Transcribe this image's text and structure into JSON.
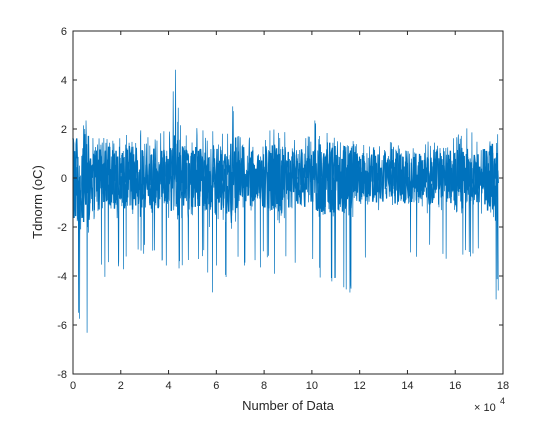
{
  "chart_data": {
    "type": "line",
    "title": "",
    "xlabel": "Number of Data",
    "ylabel": "Tdnorm (oC)",
    "x_exponent_label": {
      "base": "× 10",
      "exponent": "4"
    },
    "xlim": [
      0,
      180000
    ],
    "ylim": [
      -8,
      6
    ],
    "x_ticks": [
      0,
      20000,
      40000,
      60000,
      80000,
      100000,
      120000,
      140000,
      160000,
      180000
    ],
    "x_tick_labels": [
      "0",
      "2",
      "4",
      "6",
      "8",
      "10",
      "12",
      "14",
      "16",
      "18"
    ],
    "y_ticks": [
      -8,
      -6,
      -4,
      -2,
      0,
      2,
      4,
      6
    ],
    "y_tick_labels": [
      "-8",
      "-6",
      "-4",
      "-2",
      "0",
      "2",
      "4",
      "6"
    ],
    "grid": false,
    "line_color": "#0072BD",
    "n_points": 178000,
    "series": [
      {
        "envelope": {
          "x": [
            0,
            2000,
            4000,
            6000,
            8000,
            10000,
            15000,
            20000,
            25000,
            30000,
            35000,
            40000,
            43000,
            45000,
            50000,
            55000,
            57000,
            60000,
            65000,
            68000,
            70000,
            75000,
            80000,
            85000,
            90000,
            95000,
            100000,
            102000,
            105000,
            110000,
            115000,
            118000,
            120000,
            125000,
            130000,
            135000,
            140000,
            145000,
            150000,
            155000,
            160000,
            165000,
            170000,
            175000,
            178000
          ],
          "upper": [
            2.0,
            1.8,
            2.8,
            2.8,
            2.2,
            1.6,
            1.7,
            1.7,
            2.6,
            1.7,
            2.0,
            1.9,
            4.9,
            2.3,
            2.0,
            2.3,
            2.0,
            1.8,
            2.0,
            3.5,
            2.0,
            1.8,
            2.0,
            2.1,
            1.9,
            1.7,
            2.7,
            2.3,
            2.0,
            1.7,
            1.4,
            1.6,
            1.4,
            1.3,
            1.4,
            1.2,
            1.2,
            1.3,
            1.6,
            1.4,
            1.6,
            2.3,
            1.6,
            1.5,
            1.9
          ],
          "lower": [
            -5.8,
            -6.5,
            -6.0,
            -6.9,
            -4.6,
            -4.5,
            -4.0,
            -3.9,
            -3.5,
            -3.4,
            -3.7,
            -3.6,
            -4.0,
            -4.0,
            -3.6,
            -3.4,
            -5.4,
            -4.0,
            -4.6,
            -4.2,
            -3.7,
            -3.6,
            -3.7,
            -4.2,
            -3.6,
            -3.5,
            -3.4,
            -4.0,
            -4.8,
            -4.5,
            -5.2,
            -4.0,
            -3.6,
            -3.3,
            -3.7,
            -3.5,
            -3.4,
            -3.2,
            -3.4,
            -3.3,
            -3.6,
            -3.4,
            -3.3,
            -4.9,
            -5.2
          ]
        }
      }
    ]
  }
}
